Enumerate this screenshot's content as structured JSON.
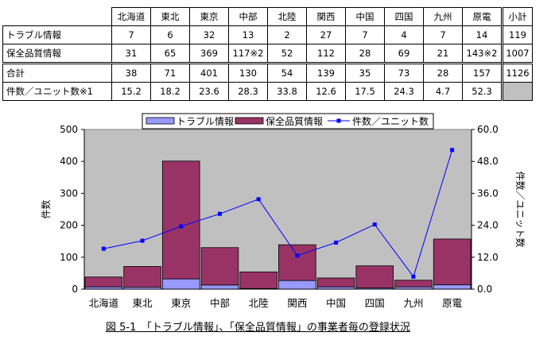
{
  "table": {
    "headers": [
      "北海道",
      "東北",
      "東京",
      "中部",
      "北陸",
      "関西",
      "中国",
      "四国",
      "九州",
      "原電",
      "小計"
    ],
    "rows": [
      {
        "label": "トラブル情報",
        "cells": [
          "7",
          "6",
          "32",
          "13",
          "2",
          "27",
          "7",
          "4",
          "7",
          "14",
          "119"
        ]
      },
      {
        "label": "保全品質情報",
        "cells": [
          "31",
          "65",
          "369",
          "117※2",
          "52",
          "112",
          "28",
          "69",
          "21",
          "143※2",
          "1007"
        ]
      },
      {
        "label": "合計",
        "cells": [
          "38",
          "71",
          "401",
          "130",
          "54",
          "139",
          "35",
          "73",
          "28",
          "157",
          "1126"
        ]
      },
      {
        "label": "件数／ユニット数※1",
        "cells": [
          "15.2",
          "18.2",
          "23.6",
          "28.3",
          "33.8",
          "12.6",
          "17.5",
          "24.3",
          "4.7",
          "52.3",
          ""
        ]
      }
    ]
  },
  "chart_data": {
    "type": "bar",
    "stacked": true,
    "categories": [
      "北海道",
      "東北",
      "東京",
      "中部",
      "北陸",
      "関西",
      "中国",
      "四国",
      "九州",
      "原電"
    ],
    "series": [
      {
        "name": "トラブル情報",
        "values": [
          7,
          6,
          32,
          13,
          2,
          27,
          7,
          4,
          7,
          14
        ],
        "color": "#9999ff",
        "axis": "left"
      },
      {
        "name": "保全品質情報",
        "values": [
          31,
          65,
          369,
          117,
          52,
          112,
          28,
          69,
          21,
          143
        ],
        "color": "#993366",
        "axis": "left"
      },
      {
        "name": "件数／ユニット数",
        "type": "line",
        "values": [
          15.2,
          18.2,
          23.6,
          28.3,
          33.8,
          12.6,
          17.5,
          24.3,
          4.7,
          52.3
        ],
        "color": "#0000ff",
        "axis": "right"
      }
    ],
    "ylabel": "件数",
    "y2label": "件数／ユニット数",
    "ylim": [
      0,
      500
    ],
    "y2lim": [
      0,
      60
    ],
    "yticks": [
      "0",
      "100",
      "200",
      "300",
      "400",
      "500"
    ],
    "y2ticks": [
      "0.0",
      "12.0",
      "24.0",
      "36.0",
      "48.0",
      "60.0"
    ],
    "grid": false,
    "legend_position": "top",
    "plot_background": "#c0c0c0"
  },
  "caption": "図 5-1　「トラブル情報」、「保全品質情報」の事業者毎の登録状況"
}
